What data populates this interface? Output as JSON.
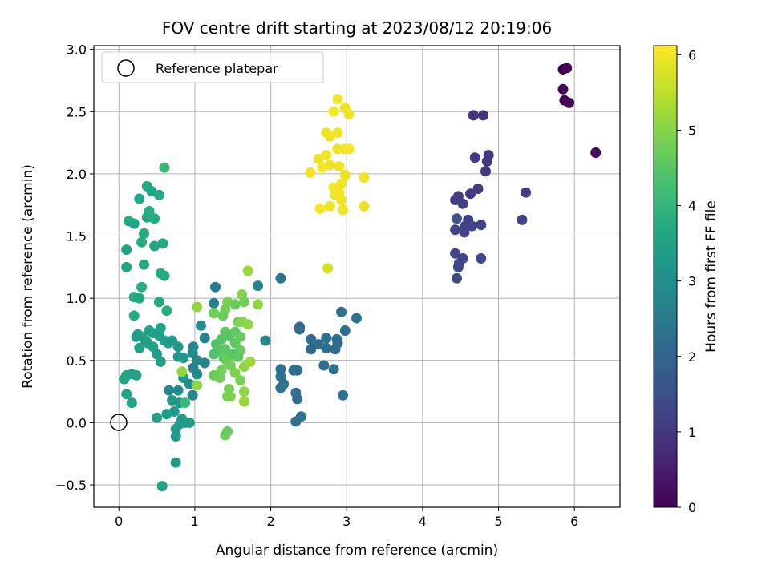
{
  "chart_data": {
    "type": "scatter",
    "title": "FOV centre drift starting at 2023/08/12 20:19:06",
    "xlabel": "Angular distance from reference (arcmin)",
    "ylabel": "Rotation from reference (arcmin)",
    "xlim": [
      -0.33,
      6.6
    ],
    "ylim": [
      -0.68,
      3.03
    ],
    "xticks": [
      0,
      1,
      2,
      3,
      4,
      5,
      6
    ],
    "xtick_labels": [
      "0",
      "1",
      "2",
      "3",
      "4",
      "5",
      "6"
    ],
    "yticks": [
      -0.5,
      0.0,
      0.5,
      1.0,
      1.5,
      2.0,
      2.5,
      3.0
    ],
    "ytick_labels": [
      "−0.5",
      "0.0",
      "0.5",
      "1.0",
      "1.5",
      "2.0",
      "2.5",
      "3.0"
    ],
    "grid": true,
    "colormap": "viridis",
    "colorbar": {
      "label": "Hours from first FF file",
      "range": [
        0,
        6.12
      ],
      "ticks": [
        0,
        1,
        2,
        3,
        4,
        5,
        6
      ],
      "tick_labels": [
        "0",
        "1",
        "2",
        "3",
        "4",
        "5",
        "6"
      ]
    },
    "legend": {
      "position": "upper-left",
      "entries": [
        {
          "label": "Reference platepar",
          "marker": "open-circle"
        }
      ]
    },
    "reference_point": {
      "x": 0,
      "y": 0
    },
    "points": [
      {
        "x": 5.85,
        "y": 2.84,
        "c": 0.0
      },
      {
        "x": 5.9,
        "y": 2.85,
        "c": 0.03
      },
      {
        "x": 5.87,
        "y": 2.59,
        "c": 0.05
      },
      {
        "x": 5.93,
        "y": 2.57,
        "c": 0.06
      },
      {
        "x": 5.85,
        "y": 2.68,
        "c": 0.08
      },
      {
        "x": 6.28,
        "y": 2.17,
        "c": 0.12
      },
      {
        "x": 4.67,
        "y": 2.47,
        "c": 0.9
      },
      {
        "x": 4.8,
        "y": 2.47,
        "c": 0.92
      },
      {
        "x": 4.87,
        "y": 2.15,
        "c": 0.95
      },
      {
        "x": 4.69,
        "y": 2.13,
        "c": 0.97
      },
      {
        "x": 4.85,
        "y": 2.1,
        "c": 1.0
      },
      {
        "x": 4.83,
        "y": 2.02,
        "c": 1.02
      },
      {
        "x": 4.73,
        "y": 1.88,
        "c": 1.05
      },
      {
        "x": 4.63,
        "y": 1.84,
        "c": 1.07
      },
      {
        "x": 4.47,
        "y": 1.82,
        "c": 1.08
      },
      {
        "x": 4.43,
        "y": 1.79,
        "c": 1.1
      },
      {
        "x": 4.53,
        "y": 1.76,
        "c": 1.12
      },
      {
        "x": 5.36,
        "y": 1.85,
        "c": 1.1
      },
      {
        "x": 4.6,
        "y": 1.63,
        "c": 1.15
      },
      {
        "x": 4.56,
        "y": 1.58,
        "c": 1.17
      },
      {
        "x": 4.43,
        "y": 1.55,
        "c": 1.18
      },
      {
        "x": 4.55,
        "y": 1.53,
        "c": 1.2
      },
      {
        "x": 4.65,
        "y": 1.58,
        "c": 1.22
      },
      {
        "x": 4.77,
        "y": 1.59,
        "c": 1.23
      },
      {
        "x": 5.31,
        "y": 1.63,
        "c": 1.25
      },
      {
        "x": 4.43,
        "y": 1.36,
        "c": 1.27
      },
      {
        "x": 4.53,
        "y": 1.32,
        "c": 1.28
      },
      {
        "x": 4.48,
        "y": 1.28,
        "c": 1.3
      },
      {
        "x": 4.77,
        "y": 1.32,
        "c": 1.32
      },
      {
        "x": 4.47,
        "y": 1.25,
        "c": 1.33
      },
      {
        "x": 4.45,
        "y": 1.16,
        "c": 1.35
      },
      {
        "x": 4.45,
        "y": 1.64,
        "c": 1.6
      },
      {
        "x": 2.13,
        "y": 1.16,
        "c": 2.3
      },
      {
        "x": 2.93,
        "y": 0.89,
        "c": 2.2
      },
      {
        "x": 3.13,
        "y": 0.84,
        "c": 2.25
      },
      {
        "x": 2.98,
        "y": 0.74,
        "c": 2.2
      },
      {
        "x": 2.38,
        "y": 0.77,
        "c": 2.1
      },
      {
        "x": 2.38,
        "y": 0.75,
        "c": 2.15
      },
      {
        "x": 2.53,
        "y": 0.67,
        "c": 2.1
      },
      {
        "x": 2.63,
        "y": 0.63,
        "c": 2.2
      },
      {
        "x": 2.73,
        "y": 0.68,
        "c": 2.25
      },
      {
        "x": 2.87,
        "y": 0.67,
        "c": 2.3
      },
      {
        "x": 2.85,
        "y": 0.59,
        "c": 2.1
      },
      {
        "x": 2.57,
        "y": 0.63,
        "c": 2.15
      },
      {
        "x": 2.53,
        "y": 0.59,
        "c": 2.05
      },
      {
        "x": 2.73,
        "y": 0.6,
        "c": 2.2
      },
      {
        "x": 2.88,
        "y": 0.64,
        "c": 2.1
      },
      {
        "x": 2.7,
        "y": 0.46,
        "c": 2.2
      },
      {
        "x": 2.83,
        "y": 0.43,
        "c": 2.3
      },
      {
        "x": 2.13,
        "y": 0.43,
        "c": 2.35
      },
      {
        "x": 2.13,
        "y": 0.37,
        "c": 2.3
      },
      {
        "x": 2.3,
        "y": 0.42,
        "c": 2.25
      },
      {
        "x": 2.35,
        "y": 0.42,
        "c": 2.2
      },
      {
        "x": 2.17,
        "y": 0.31,
        "c": 2.35
      },
      {
        "x": 2.13,
        "y": 0.28,
        "c": 2.3
      },
      {
        "x": 2.33,
        "y": 0.24,
        "c": 2.25
      },
      {
        "x": 2.35,
        "y": 0.19,
        "c": 2.2
      },
      {
        "x": 2.95,
        "y": 0.22,
        "c": 2.3
      },
      {
        "x": 2.4,
        "y": 0.05,
        "c": 2.3
      },
      {
        "x": 2.33,
        "y": 0.01,
        "c": 2.25
      },
      {
        "x": 1.83,
        "y": 1.1,
        "c": 2.8
      },
      {
        "x": 1.27,
        "y": 1.09,
        "c": 2.6
      },
      {
        "x": 1.25,
        "y": 0.96,
        "c": 2.7
      },
      {
        "x": 1.08,
        "y": 0.78,
        "c": 2.9
      },
      {
        "x": 1.13,
        "y": 0.68,
        "c": 2.75
      },
      {
        "x": 1.93,
        "y": 0.66,
        "c": 2.8
      },
      {
        "x": 0.98,
        "y": 0.61,
        "c": 2.85
      },
      {
        "x": 0.97,
        "y": 0.56,
        "c": 2.9
      },
      {
        "x": 1.03,
        "y": 0.5,
        "c": 2.8
      },
      {
        "x": 0.98,
        "y": 0.44,
        "c": 2.75
      },
      {
        "x": 1.13,
        "y": 0.48,
        "c": 2.7
      },
      {
        "x": 1.03,
        "y": 0.39,
        "c": 2.85
      },
      {
        "x": 0.93,
        "y": 0.31,
        "c": 2.9
      },
      {
        "x": 0.97,
        "y": 0.22,
        "c": 2.8
      },
      {
        "x": 0.78,
        "y": 0.26,
        "c": 2.9
      },
      {
        "x": 0.66,
        "y": 0.26,
        "c": 2.85
      },
      {
        "x": 0.6,
        "y": 2.05,
        "c": 4.1
      },
      {
        "x": 0.37,
        "y": 1.9,
        "c": 3.7
      },
      {
        "x": 0.43,
        "y": 1.86,
        "c": 3.6
      },
      {
        "x": 0.53,
        "y": 1.83,
        "c": 3.7
      },
      {
        "x": 0.27,
        "y": 1.8,
        "c": 3.65
      },
      {
        "x": 0.4,
        "y": 1.7,
        "c": 3.8
      },
      {
        "x": 0.37,
        "y": 1.65,
        "c": 3.7
      },
      {
        "x": 0.47,
        "y": 1.64,
        "c": 3.75
      },
      {
        "x": 0.13,
        "y": 1.62,
        "c": 3.7
      },
      {
        "x": 0.2,
        "y": 1.6,
        "c": 3.6
      },
      {
        "x": 0.33,
        "y": 1.52,
        "c": 3.7
      },
      {
        "x": 0.3,
        "y": 1.45,
        "c": 3.75
      },
      {
        "x": 0.58,
        "y": 1.44,
        "c": 3.7
      },
      {
        "x": 0.47,
        "y": 1.42,
        "c": 3.65
      },
      {
        "x": 0.1,
        "y": 1.39,
        "c": 3.6
      },
      {
        "x": 0.33,
        "y": 1.27,
        "c": 3.7
      },
      {
        "x": 0.1,
        "y": 1.25,
        "c": 3.6
      },
      {
        "x": 0.55,
        "y": 1.2,
        "c": 3.75
      },
      {
        "x": 0.6,
        "y": 1.18,
        "c": 3.7
      },
      {
        "x": 0.3,
        "y": 1.09,
        "c": 3.8
      },
      {
        "x": 0.2,
        "y": 1.01,
        "c": 3.7
      },
      {
        "x": 0.27,
        "y": 1.0,
        "c": 3.65
      },
      {
        "x": 0.53,
        "y": 0.97,
        "c": 3.7
      },
      {
        "x": 0.63,
        "y": 0.9,
        "c": 3.8
      },
      {
        "x": 0.2,
        "y": 0.86,
        "c": 3.7
      },
      {
        "x": 0.4,
        "y": 0.74,
        "c": 3.6
      },
      {
        "x": 0.45,
        "y": 0.72,
        "c": 3.5
      },
      {
        "x": 0.55,
        "y": 0.76,
        "c": 3.6
      },
      {
        "x": 0.25,
        "y": 0.71,
        "c": 3.55
      },
      {
        "x": 0.3,
        "y": 0.69,
        "c": 3.5
      },
      {
        "x": 0.53,
        "y": 0.7,
        "c": 3.45
      },
      {
        "x": 0.23,
        "y": 0.69,
        "c": 3.4
      },
      {
        "x": 0.6,
        "y": 0.66,
        "c": 3.5
      },
      {
        "x": 0.65,
        "y": 0.64,
        "c": 3.4
      },
      {
        "x": 0.7,
        "y": 0.66,
        "c": 3.3
      },
      {
        "x": 0.38,
        "y": 0.64,
        "c": 3.45
      },
      {
        "x": 0.45,
        "y": 0.61,
        "c": 3.5
      },
      {
        "x": 0.27,
        "y": 0.6,
        "c": 3.55
      },
      {
        "x": 0.35,
        "y": 0.66,
        "c": 3.4
      },
      {
        "x": 0.78,
        "y": 0.61,
        "c": 3.3
      },
      {
        "x": 0.5,
        "y": 0.55,
        "c": 3.35
      },
      {
        "x": 0.78,
        "y": 0.53,
        "c": 3.2
      },
      {
        "x": 0.85,
        "y": 0.52,
        "c": 3.25
      },
      {
        "x": 0.55,
        "y": 0.49,
        "c": 3.45
      },
      {
        "x": 0.1,
        "y": 0.38,
        "c": 3.6
      },
      {
        "x": 0.17,
        "y": 0.39,
        "c": 3.55
      },
      {
        "x": 0.23,
        "y": 0.38,
        "c": 3.5
      },
      {
        "x": 0.07,
        "y": 0.35,
        "c": 3.6
      },
      {
        "x": 0.85,
        "y": 0.36,
        "c": 3.25
      },
      {
        "x": 0.1,
        "y": 0.23,
        "c": 3.6
      },
      {
        "x": 0.17,
        "y": 0.16,
        "c": 3.55
      },
      {
        "x": 0.7,
        "y": 0.18,
        "c": 3.3
      },
      {
        "x": 0.8,
        "y": 0.16,
        "c": 3.25
      },
      {
        "x": 0.63,
        "y": 0.07,
        "c": 3.4
      },
      {
        "x": 0.73,
        "y": 0.09,
        "c": 3.35
      },
      {
        "x": 0.5,
        "y": 0.04,
        "c": 3.45
      },
      {
        "x": 0.83,
        "y": 0.03,
        "c": 3.3
      },
      {
        "x": 0.88,
        "y": 0.0,
        "c": 3.35
      },
      {
        "x": 0.8,
        "y": -0.01,
        "c": 3.3
      },
      {
        "x": 0.93,
        "y": 0.0,
        "c": 3.4
      },
      {
        "x": 0.75,
        "y": -0.05,
        "c": 3.35
      },
      {
        "x": 0.75,
        "y": -0.11,
        "c": 3.3
      },
      {
        "x": 0.75,
        "y": -0.32,
        "c": 3.35
      },
      {
        "x": 0.57,
        "y": -0.51,
        "c": 3.45
      },
      {
        "x": 0.87,
        "y": 0.16,
        "c": 4.1
      },
      {
        "x": 1.7,
        "y": 1.22,
        "c": 5.2
      },
      {
        "x": 1.62,
        "y": 1.03,
        "c": 5.0
      },
      {
        "x": 1.03,
        "y": 0.93,
        "c": 5.1
      },
      {
        "x": 1.43,
        "y": 0.97,
        "c": 4.9
      },
      {
        "x": 1.4,
        "y": 0.91,
        "c": 4.8
      },
      {
        "x": 1.53,
        "y": 0.95,
        "c": 4.7
      },
      {
        "x": 1.65,
        "y": 0.97,
        "c": 4.8
      },
      {
        "x": 1.83,
        "y": 0.95,
        "c": 5.1
      },
      {
        "x": 1.25,
        "y": 0.88,
        "c": 4.8
      },
      {
        "x": 1.37,
        "y": 0.86,
        "c": 4.7
      },
      {
        "x": 1.57,
        "y": 0.81,
        "c": 4.9
      },
      {
        "x": 1.63,
        "y": 0.81,
        "c": 5.0
      },
      {
        "x": 1.7,
        "y": 0.79,
        "c": 5.1
      },
      {
        "x": 1.4,
        "y": 0.73,
        "c": 4.6
      },
      {
        "x": 1.45,
        "y": 0.7,
        "c": 4.5
      },
      {
        "x": 1.53,
        "y": 0.73,
        "c": 4.6
      },
      {
        "x": 1.6,
        "y": 0.69,
        "c": 4.7
      },
      {
        "x": 1.35,
        "y": 0.67,
        "c": 4.5
      },
      {
        "x": 1.28,
        "y": 0.63,
        "c": 4.4
      },
      {
        "x": 1.53,
        "y": 0.64,
        "c": 4.6
      },
      {
        "x": 1.3,
        "y": 0.58,
        "c": 4.5
      },
      {
        "x": 1.4,
        "y": 0.59,
        "c": 4.55
      },
      {
        "x": 1.6,
        "y": 0.58,
        "c": 4.7
      },
      {
        "x": 1.25,
        "y": 0.55,
        "c": 4.4
      },
      {
        "x": 1.5,
        "y": 0.55,
        "c": 4.5
      },
      {
        "x": 1.57,
        "y": 0.53,
        "c": 4.6
      },
      {
        "x": 1.38,
        "y": 0.52,
        "c": 4.6
      },
      {
        "x": 1.43,
        "y": 0.49,
        "c": 4.7
      },
      {
        "x": 1.47,
        "y": 0.46,
        "c": 4.8
      },
      {
        "x": 1.65,
        "y": 0.45,
        "c": 5.1
      },
      {
        "x": 1.73,
        "y": 0.49,
        "c": 5.2
      },
      {
        "x": 1.35,
        "y": 0.42,
        "c": 4.8
      },
      {
        "x": 1.53,
        "y": 0.4,
        "c": 4.9
      },
      {
        "x": 1.25,
        "y": 0.38,
        "c": 4.7
      },
      {
        "x": 1.33,
        "y": 0.36,
        "c": 4.8
      },
      {
        "x": 1.6,
        "y": 0.34,
        "c": 4.9
      },
      {
        "x": 1.03,
        "y": 0.3,
        "c": 5.1
      },
      {
        "x": 1.45,
        "y": 0.27,
        "c": 4.8
      },
      {
        "x": 1.65,
        "y": 0.25,
        "c": 5.1
      },
      {
        "x": 1.47,
        "y": 0.21,
        "c": 5.0
      },
      {
        "x": 1.43,
        "y": 0.21,
        "c": 4.9
      },
      {
        "x": 1.65,
        "y": 0.17,
        "c": 5.2
      },
      {
        "x": 0.83,
        "y": 0.41,
        "c": 5.1
      },
      {
        "x": 1.4,
        "y": -0.1,
        "c": 4.8
      },
      {
        "x": 1.43,
        "y": -0.07,
        "c": 4.7
      },
      {
        "x": 2.88,
        "y": 2.6,
        "c": 6.0
      },
      {
        "x": 2.98,
        "y": 2.53,
        "c": 6.0
      },
      {
        "x": 2.83,
        "y": 2.5,
        "c": 6.05
      },
      {
        "x": 3.03,
        "y": 2.48,
        "c": 6.0
      },
      {
        "x": 2.73,
        "y": 2.33,
        "c": 5.95
      },
      {
        "x": 2.78,
        "y": 2.3,
        "c": 6.0
      },
      {
        "x": 2.88,
        "y": 2.33,
        "c": 6.0
      },
      {
        "x": 2.88,
        "y": 2.2,
        "c": 5.95
      },
      {
        "x": 2.98,
        "y": 2.2,
        "c": 6.0
      },
      {
        "x": 3.03,
        "y": 2.2,
        "c": 6.05
      },
      {
        "x": 2.73,
        "y": 2.15,
        "c": 6.0
      },
      {
        "x": 2.63,
        "y": 2.12,
        "c": 5.95
      },
      {
        "x": 2.78,
        "y": 2.07,
        "c": 6.0
      },
      {
        "x": 2.9,
        "y": 2.06,
        "c": 6.0
      },
      {
        "x": 2.68,
        "y": 2.05,
        "c": 6.05
      },
      {
        "x": 2.52,
        "y": 2.01,
        "c": 6.0
      },
      {
        "x": 2.98,
        "y": 1.99,
        "c": 5.95
      },
      {
        "x": 3.23,
        "y": 1.97,
        "c": 6.0
      },
      {
        "x": 2.93,
        "y": 1.92,
        "c": 6.0
      },
      {
        "x": 2.83,
        "y": 1.89,
        "c": 6.05
      },
      {
        "x": 2.88,
        "y": 1.87,
        "c": 6.0
      },
      {
        "x": 2.85,
        "y": 1.83,
        "c": 5.95
      },
      {
        "x": 2.9,
        "y": 1.85,
        "c": 6.0
      },
      {
        "x": 2.93,
        "y": 1.79,
        "c": 6.0
      },
      {
        "x": 2.65,
        "y": 1.72,
        "c": 6.05
      },
      {
        "x": 2.78,
        "y": 1.74,
        "c": 6.0
      },
      {
        "x": 3.23,
        "y": 1.74,
        "c": 5.95
      },
      {
        "x": 2.95,
        "y": 1.71,
        "c": 6.0
      },
      {
        "x": 2.75,
        "y": 1.24,
        "c": 5.7
      }
    ]
  }
}
